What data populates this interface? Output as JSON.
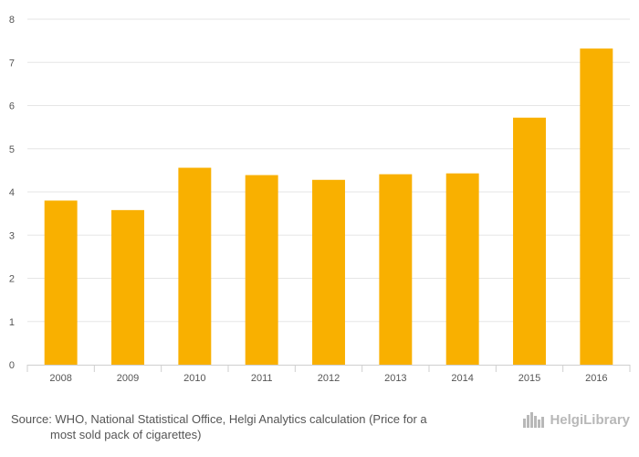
{
  "chart_data": {
    "type": "bar",
    "categories": [
      "2008",
      "2009",
      "2010",
      "2011",
      "2012",
      "2013",
      "2014",
      "2015",
      "2016"
    ],
    "values": [
      3.8,
      3.58,
      4.56,
      4.39,
      4.28,
      4.41,
      4.43,
      5.72,
      7.32
    ],
    "ylim": [
      0,
      8
    ],
    "yticks": [
      0,
      1,
      2,
      3,
      4,
      5,
      6,
      7,
      8
    ],
    "grid": true,
    "legend": "none",
    "bar_color": "#F9B000"
  },
  "footer": {
    "source_line1": "Source: WHO, National Statistical Office, Helgi Analytics calculation (Price for a",
    "source_line2": "most sold pack of cigarettes)",
    "logo_text": "HelgiLibrary",
    "logo_icon": "city-skyline-icon"
  },
  "colors": {
    "logo": "#B8B8B8",
    "grid": "#E6E6E6",
    "text": "#555555"
  }
}
